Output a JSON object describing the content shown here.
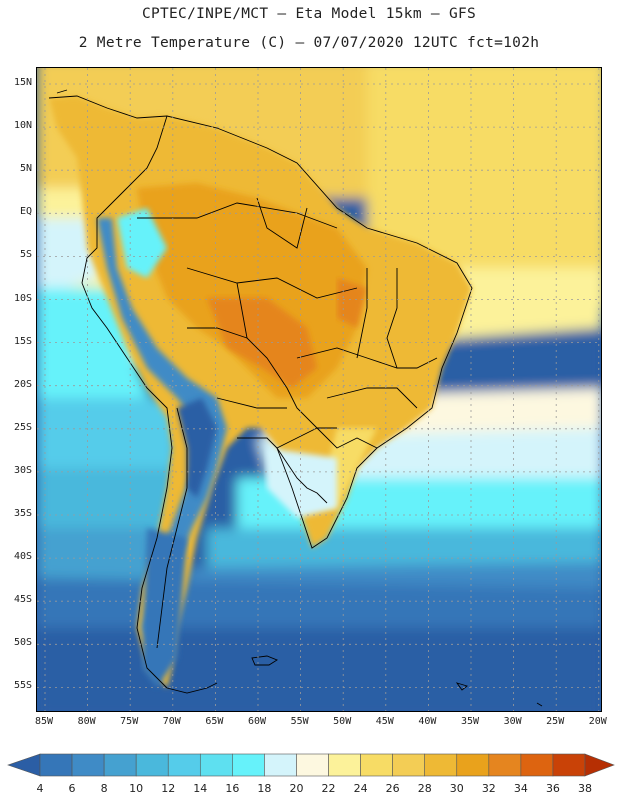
{
  "header": {
    "line1": "CPTEC/INPE/MCT –  Eta Model 15km – GFS",
    "line2": "2 Metre Temperature (C) – 07/07/2020 12UTC fct=102h"
  },
  "map": {
    "lat_labels": [
      "15N",
      "10N",
      "5N",
      "EQ",
      "5S",
      "10S",
      "15S",
      "20S",
      "25S",
      "30S",
      "35S",
      "40S",
      "45S",
      "50S",
      "55S"
    ],
    "lon_labels": [
      "85W",
      "80W",
      "75W",
      "70W",
      "65W",
      "60W",
      "55W",
      "50W",
      "45W",
      "40W",
      "35W",
      "30W",
      "25W",
      "20W"
    ]
  },
  "legend": {
    "values": [
      "4",
      "6",
      "8",
      "10",
      "12",
      "14",
      "16",
      "18",
      "20",
      "22",
      "24",
      "26",
      "28",
      "30",
      "32",
      "34",
      "36",
      "38"
    ],
    "colors": [
      "#2b5ea5",
      "#3576b8",
      "#3f8bc6",
      "#45a1d0",
      "#4ab8dc",
      "#55ccea",
      "#5ee0f0",
      "#66f2fa",
      "#d4f4fb",
      "#fdf8e0",
      "#fcf29a",
      "#f7dc65",
      "#f3cd55",
      "#eeb935",
      "#e9a21c",
      "#e5851f",
      "#dd6410",
      "#c94207",
      "#b62f03"
    ]
  }
}
